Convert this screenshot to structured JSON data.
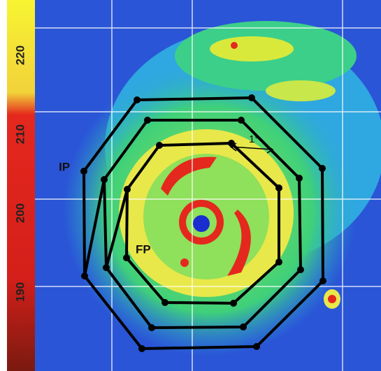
{
  "colorbar": {
    "lim": [
      180,
      227
    ],
    "ticks": [
      190,
      200,
      210,
      220
    ]
  },
  "labels": {
    "ip": "IP",
    "fp": "FP",
    "scale": "1°"
  }
}
